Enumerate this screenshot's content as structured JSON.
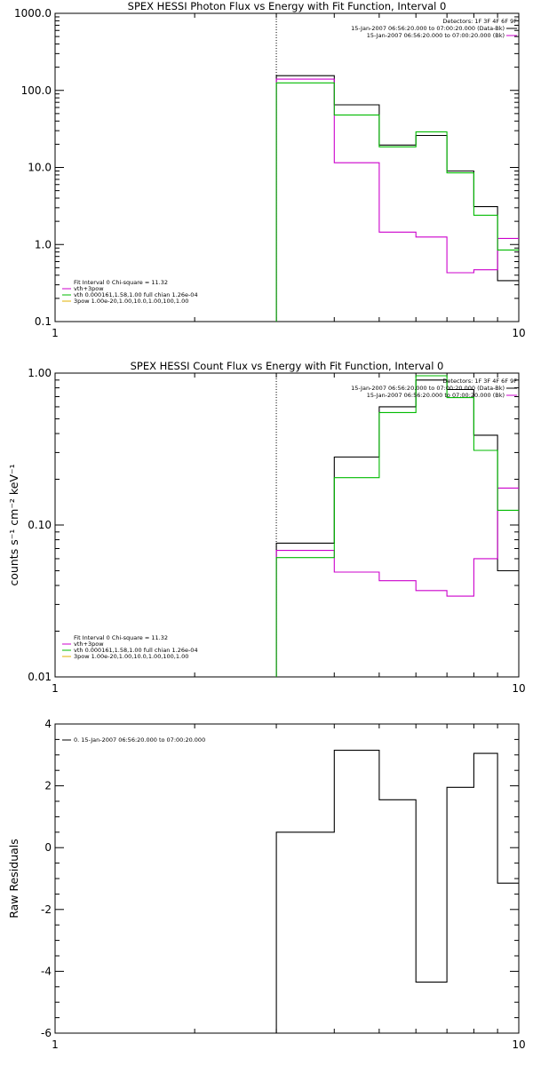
{
  "chart_data": [
    {
      "type": "line",
      "step": true,
      "title": "SPEX HESSI Photon Flux vs Energy with Fit Function, Interval 0",
      "xlabel": "",
      "ylabel": "",
      "xscale": "log",
      "yscale": "log",
      "xlim": [
        1,
        10
      ],
      "ylim": [
        0.1,
        1000
      ],
      "x_ticks": [
        "1",
        "10"
      ],
      "y_ticks": [
        "0.1",
        "1.0",
        "10.0",
        "100.0",
        "1000.0"
      ],
      "y_tick_values": [
        0.1,
        1,
        10,
        100,
        1000
      ],
      "vline_x": 3,
      "bin_edges": [
        3,
        4,
        5,
        6,
        7,
        8,
        9,
        10
      ],
      "series": [
        {
          "color": "#000000",
          "values": [
            155,
            65,
            19.5,
            26,
            9,
            3.1,
            0.34
          ]
        },
        {
          "color": "#cc00cc",
          "values": [
            140,
            11.5,
            1.45,
            1.25,
            0.43,
            0.47,
            1.2
          ]
        },
        {
          "color": "#00bb00",
          "values": [
            125,
            48,
            18.5,
            29,
            8.5,
            2.4,
            0.85
          ]
        }
      ],
      "annotation": {
        "detectors": "Detectors: 1F 3F 4F 6F 9F",
        "lines": [
          {
            "text": "15-Jan-2007 06:56:20.000 to 07:00:20.000 (Data-Bk)",
            "color": "#000000"
          },
          {
            "text": "15-Jan-2007 06:56:20.000 to 07:00:20.000 (Bk)",
            "color": "#cc00cc"
          }
        ]
      },
      "legend_position": "bottom-left",
      "legend": [
        {
          "text": "Fit Interval 0   Chi-square = 11.32",
          "color": ""
        },
        {
          "text": "vth+3pow",
          "color": "#cc00cc"
        },
        {
          "text": "vth 0.000161,1.58,1.00  full chian 1.26e-04",
          "color": "#00bb00"
        },
        {
          "text": "3pow 1.00e-20,1.00,10.0,1.00,100,1.00",
          "color": "#e0b000"
        }
      ]
    },
    {
      "type": "line",
      "step": true,
      "title": "SPEX HESSI Count Flux vs Energy with Fit Function, Interval 0",
      "xlabel": "",
      "ylabel": "counts s⁻¹ cm⁻² keV⁻¹",
      "xscale": "log",
      "yscale": "log",
      "xlim": [
        1,
        10
      ],
      "ylim": [
        0.01,
        1
      ],
      "x_ticks": [
        "1",
        "10"
      ],
      "y_ticks": [
        "0.01",
        "0.10",
        "1.00"
      ],
      "y_tick_values": [
        0.01,
        0.1,
        1
      ],
      "vline_x": 3,
      "bin_edges": [
        3,
        4,
        5,
        6,
        7,
        8,
        9,
        10
      ],
      "series": [
        {
          "color": "#000000",
          "values": [
            0.076,
            0.28,
            0.6,
            0.9,
            0.78,
            0.39,
            0.05
          ]
        },
        {
          "color": "#cc00cc",
          "values": [
            0.068,
            0.049,
            0.043,
            0.037,
            0.034,
            0.06,
            0.175
          ]
        },
        {
          "color": "#00bb00",
          "values": [
            0.061,
            0.205,
            0.55,
            0.96,
            0.69,
            0.31,
            0.125
          ]
        }
      ],
      "annotation": {
        "detectors": "Detectors: 1F 3F 4F 6F 9F",
        "lines": [
          {
            "text": "15-Jan-2007 06:56:20.000 to 07:00:20.000 (Data-Bk)",
            "color": "#000000"
          },
          {
            "text": "15-Jan-2007 06:56:20.000 to 07:00:20.000 (Bk)",
            "color": "#cc00cc"
          }
        ]
      },
      "legend_position": "bottom-left",
      "legend": [
        {
          "text": "Fit Interval 0   Chi-square = 11.32",
          "color": ""
        },
        {
          "text": "vth+3pow",
          "color": "#cc00cc"
        },
        {
          "text": "vth 0.000161,1.58,1.00  full chian 1.26e-04",
          "color": "#00bb00"
        },
        {
          "text": "3pow 1.00e-20,1.00,10.0,1.00,100,1.00",
          "color": "#e0b000"
        }
      ]
    },
    {
      "type": "line",
      "step": true,
      "title": "",
      "xlabel": "",
      "ylabel": "Raw Residuals",
      "xscale": "log",
      "yscale": "linear",
      "xlim": [
        1,
        10
      ],
      "ylim": [
        -6,
        4
      ],
      "x_ticks": [
        "1",
        "10"
      ],
      "y_ticks": [
        "4",
        "2",
        "0",
        "-2",
        "-4",
        "-6"
      ],
      "y_tick_values": [
        4,
        2,
        0,
        -2,
        -4,
        -6
      ],
      "vline_x": null,
      "bin_edges": [
        3,
        4,
        5,
        6,
        7,
        8,
        9,
        10
      ],
      "series": [
        {
          "color": "#000000",
          "values": [
            0.5,
            3.15,
            1.55,
            -4.35,
            1.95,
            3.05,
            -1.15
          ]
        }
      ],
      "annotation": null,
      "legend_position": "top-left",
      "legend": [
        {
          "text": "0. 15-Jan-2007 06:56:20.000 to 07:00:20.000",
          "color": "#000000"
        }
      ]
    }
  ]
}
